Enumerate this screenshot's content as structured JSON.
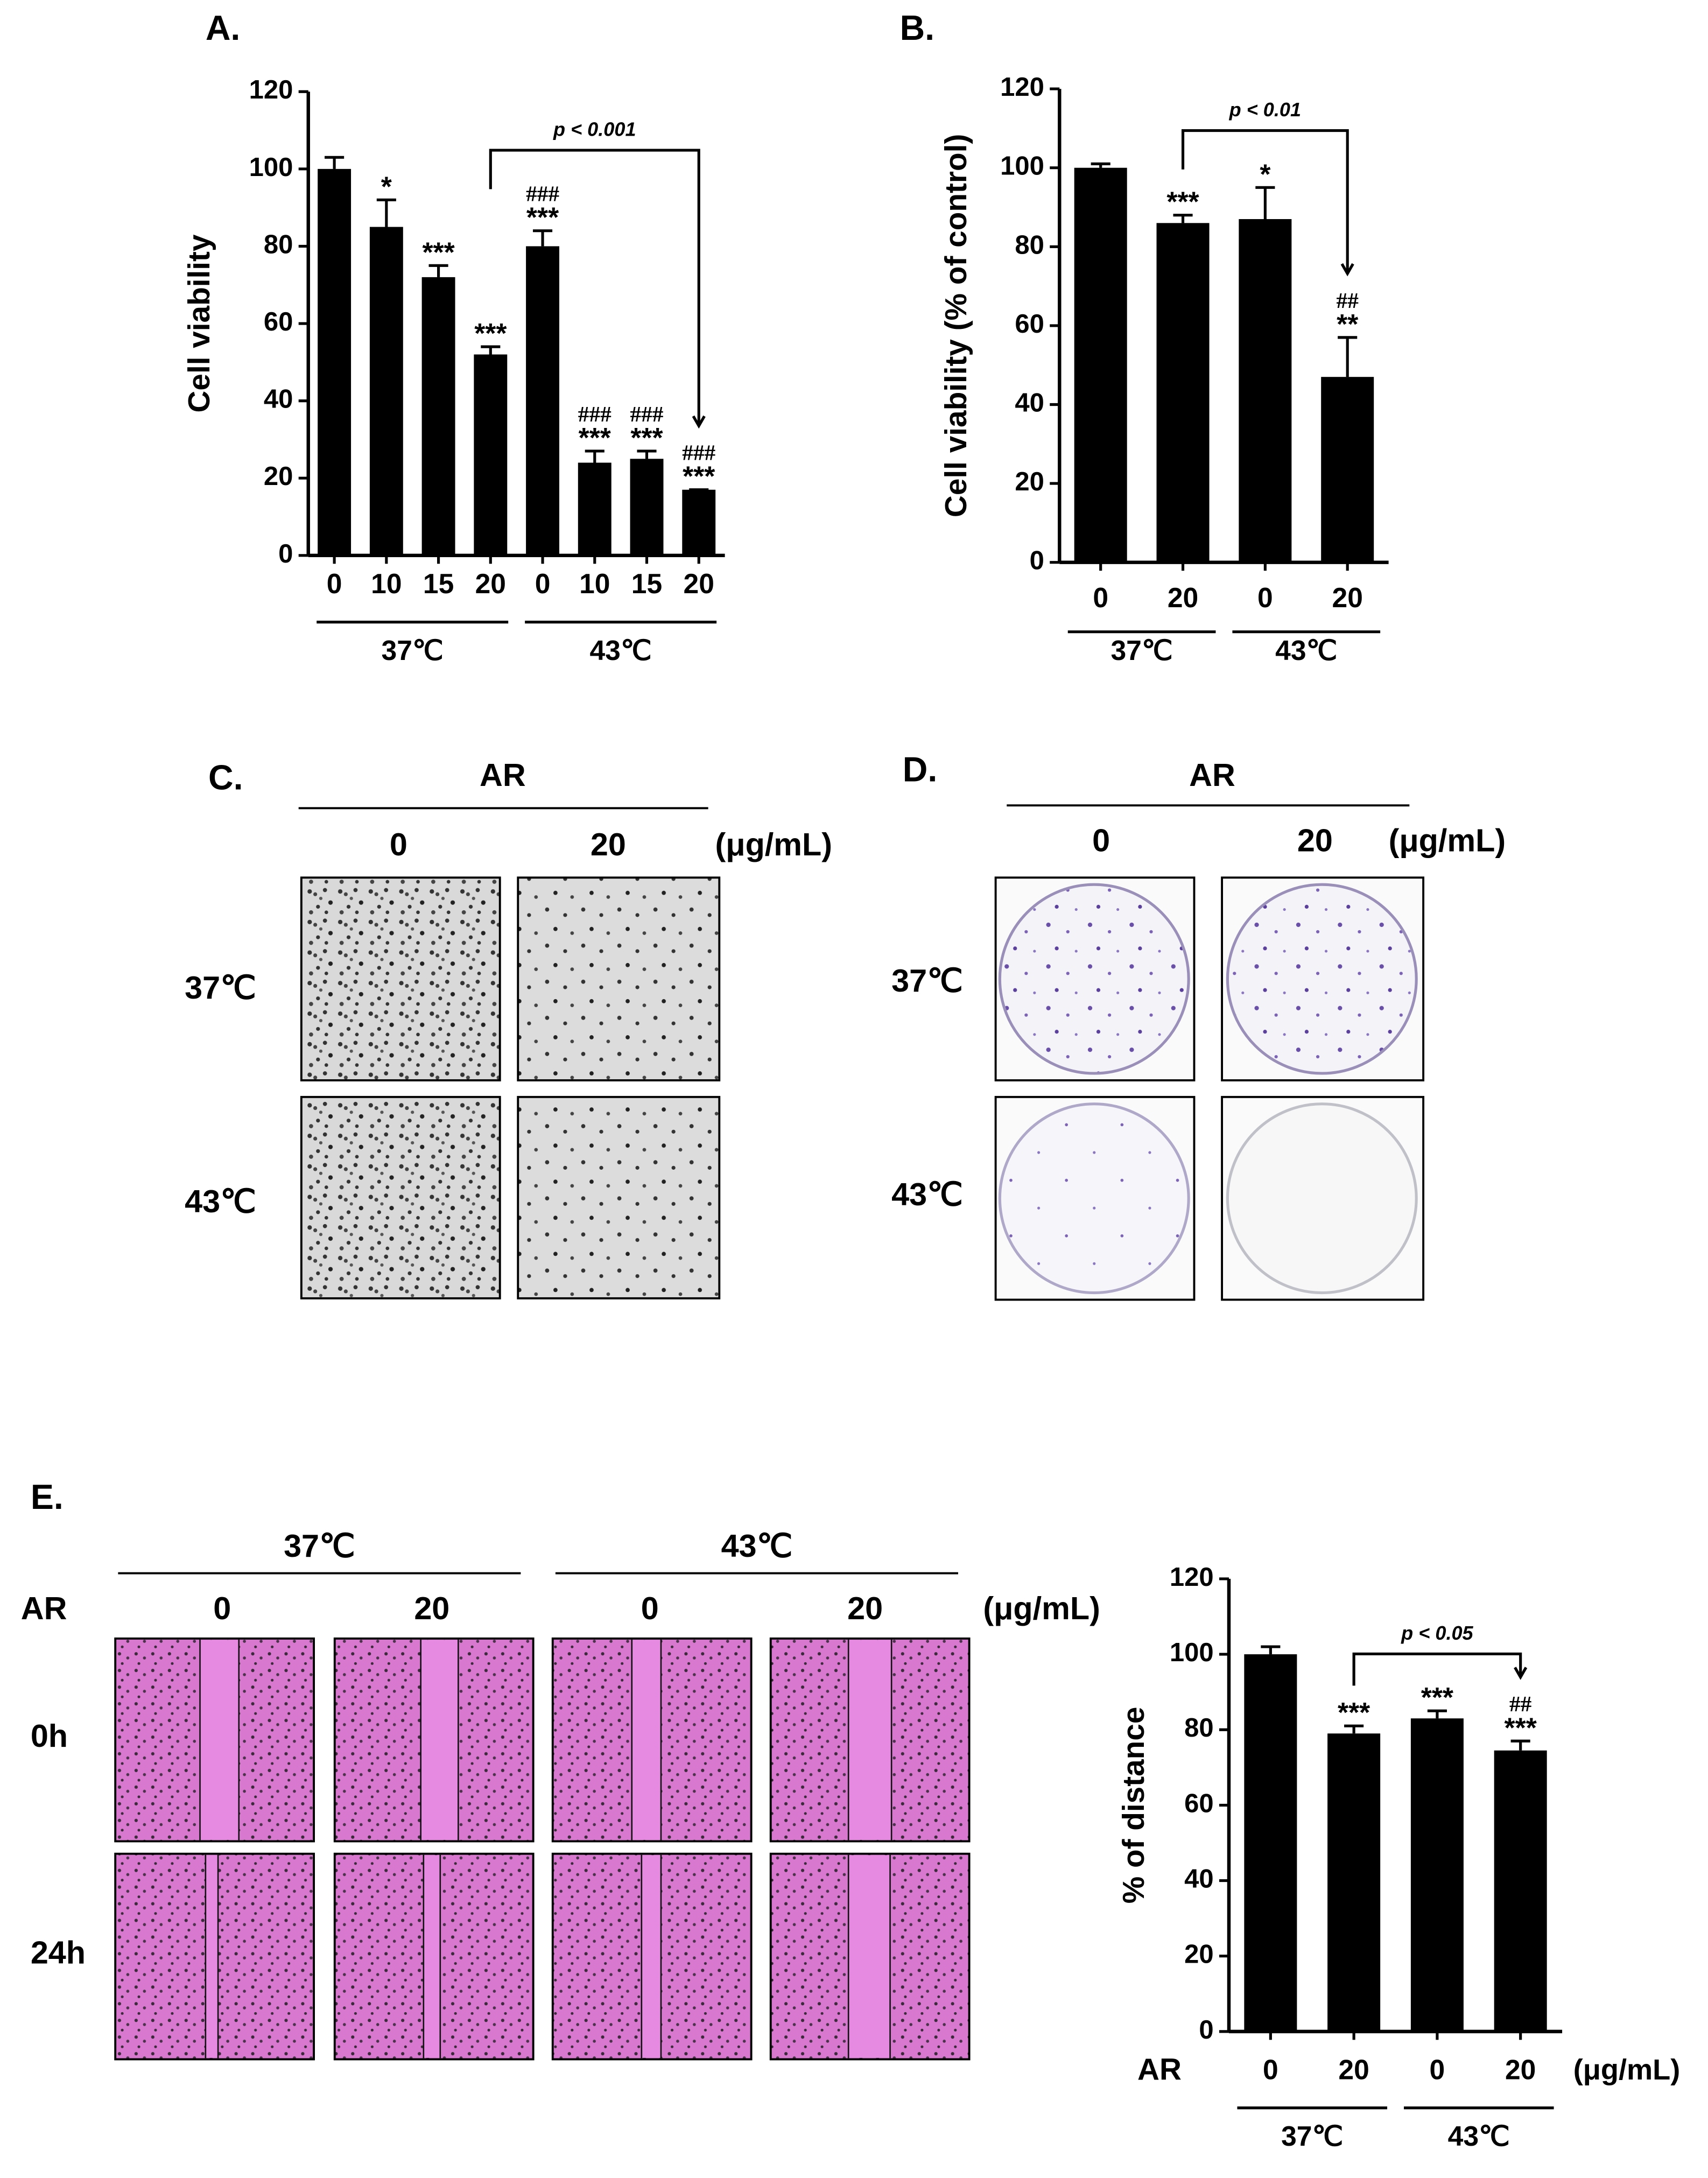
{
  "chart_data": [
    {
      "type": "bar",
      "title": "A.",
      "y_label": "Cell viability",
      "categories": [
        "0",
        "10",
        "15",
        "20",
        "0",
        "10",
        "15",
        "20"
      ],
      "groups": [
        "37℃",
        "37℃",
        "37℃",
        "37℃",
        "43℃",
        "43℃",
        "43℃",
        "43℃"
      ],
      "values": [
        100,
        85,
        72,
        52,
        80,
        24,
        25,
        17
      ],
      "errors": [
        3,
        7,
        3,
        2,
        4,
        3,
        2,
        0
      ],
      "annotations": [
        null,
        [
          "*"
        ],
        [
          "***"
        ],
        [
          "***"
        ],
        [
          "###",
          "***"
        ],
        [
          "###",
          "***"
        ],
        [
          "###",
          "***"
        ],
        [
          "###",
          "***"
        ]
      ],
      "bracket": {
        "label": "p < 0.001",
        "between": [
          3,
          7
        ]
      },
      "color": "#000000",
      "ylim": [
        0,
        120
      ],
      "yticks": [
        0,
        20,
        40,
        60,
        80,
        100,
        120
      ]
    },
    {
      "type": "bar",
      "title": "B.",
      "y_label": "Cell viability (% of control)",
      "categories": [
        "0",
        "20",
        "0",
        "20"
      ],
      "groups": [
        "37℃",
        "37℃",
        "43℃",
        "43℃"
      ],
      "values": [
        100,
        86,
        87,
        47
      ],
      "errors": [
        1,
        2,
        8,
        10
      ],
      "annotations": [
        null,
        [
          "***"
        ],
        [
          "*"
        ],
        [
          "##",
          "**"
        ]
      ],
      "bracket": {
        "label": "p < 0.01",
        "between": [
          1,
          3
        ]
      },
      "color": "#000000",
      "ylim": [
        0,
        120
      ],
      "yticks": [
        0,
        20,
        40,
        60,
        80,
        100,
        120
      ]
    },
    {
      "type": "bar",
      "y_label": "% of distance",
      "x_label": "AR",
      "unit": "(μg/mL)",
      "categories": [
        "0",
        "20",
        "0",
        "20"
      ],
      "groups": [
        "37℃",
        "37℃",
        "43℃",
        "43℃"
      ],
      "values": [
        100,
        79,
        83,
        74.5
      ],
      "errors": [
        2,
        2,
        2,
        2.5
      ],
      "annotations": [
        null,
        [
          "***"
        ],
        [
          "***"
        ],
        [
          "##",
          "***"
        ]
      ],
      "bracket": {
        "label": "p < 0.05",
        "between": [
          1,
          3
        ]
      },
      "color": "#000000",
      "ylim": [
        0,
        120
      ],
      "yticks": [
        0,
        20,
        40,
        60,
        80,
        100,
        120
      ]
    }
  ],
  "figure": {
    "C": {
      "title": "C.",
      "treatment": "AR",
      "columns": [
        "0",
        "20"
      ],
      "unit": "(μg/mL)",
      "rows": [
        "37℃",
        "43℃"
      ]
    },
    "D": {
      "title": "D.",
      "treatment": "AR",
      "columns": [
        "0",
        "20"
      ],
      "unit": "(μg/mL)",
      "rows": [
        "37℃",
        "43℃"
      ]
    },
    "E": {
      "title": "E.",
      "treatment": "AR",
      "groups": [
        "37℃",
        "43℃"
      ],
      "columns": [
        "0",
        "20",
        "0",
        "20"
      ],
      "unit": "(μg/mL)",
      "rows": [
        "0h",
        "24h"
      ]
    }
  }
}
